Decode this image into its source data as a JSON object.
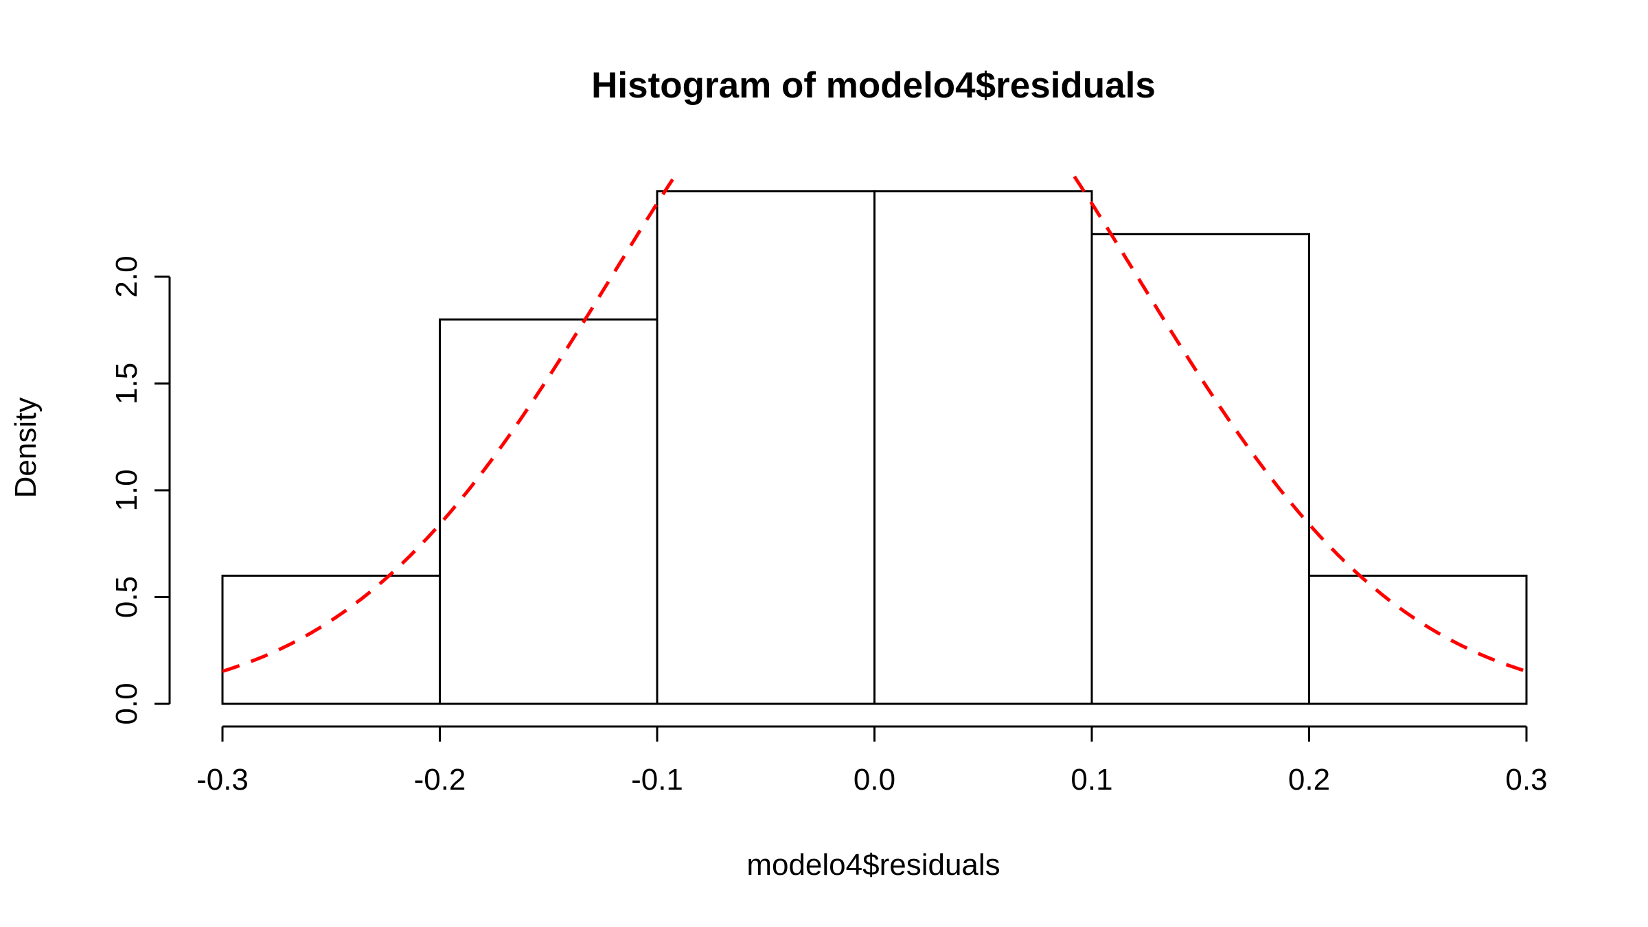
{
  "chart_data": {
    "type": "bar",
    "title": "Histogram of modelo4$residuals",
    "xlabel": "modelo4$residuals",
    "ylabel": "Density",
    "bins": [
      {
        "from": -0.3,
        "to": -0.2,
        "density": 0.6
      },
      {
        "from": -0.2,
        "to": -0.1,
        "density": 1.8
      },
      {
        "from": -0.1,
        "to": 0.0,
        "density": 2.4
      },
      {
        "from": 0.0,
        "to": 0.1,
        "density": 2.4
      },
      {
        "from": 0.1,
        "to": 0.2,
        "density": 2.2
      },
      {
        "from": 0.2,
        "to": 0.3,
        "density": 0.6
      }
    ],
    "curve": {
      "kind": "normal-density",
      "mean": 0.0,
      "sd": 0.121,
      "style": "dashed",
      "color": "#ff0000"
    },
    "xticks": [
      "-0.3",
      "-0.2",
      "-0.1",
      "0.0",
      "0.1",
      "0.2",
      "0.3"
    ],
    "yticks": [
      "0.0",
      "0.5",
      "1.0",
      "1.5",
      "2.0"
    ],
    "xlim": [
      -0.3,
      0.3
    ],
    "ylim": [
      0,
      2.4
    ],
    "grid": false,
    "colors": {
      "bars_fill": "#ffffff",
      "bars_stroke": "#000000",
      "curve": "#ff0000"
    }
  }
}
